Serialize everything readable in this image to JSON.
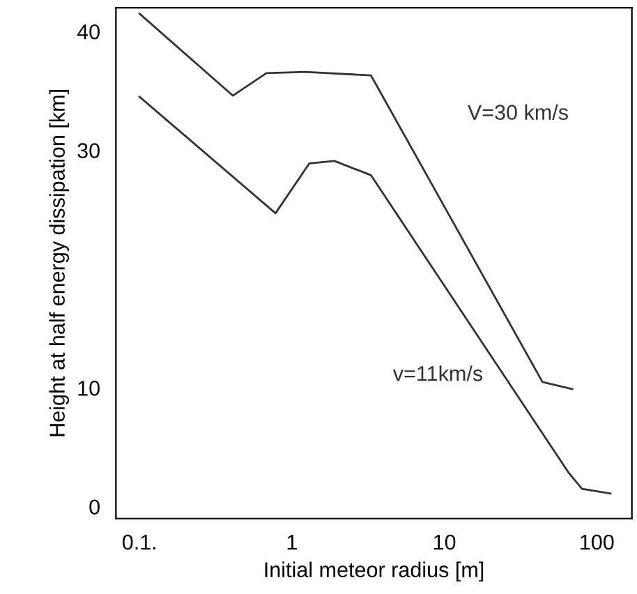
{
  "chart_data": {
    "type": "line",
    "xlabel": "Initial meteor radius [m]",
    "ylabel": "Height at half energy dissipation [km]",
    "log": "x",
    "xlim": [
      0.07,
      170
    ],
    "ylim": [
      -1,
      42
    ],
    "xticks": [
      {
        "value": 0.1,
        "label": "0.1."
      },
      1,
      10,
      100
    ],
    "yticks": [
      0,
      10,
      30,
      40
    ],
    "grid": false,
    "legend": false,
    "marker": "none",
    "line_style": "solid",
    "series": [
      {
        "name": "V=30 km/s",
        "color": "#333333",
        "x": [
          0.1,
          0.41,
          0.68,
          1.22,
          3.3,
          44,
          69
        ],
        "values": [
          41.5,
          34.6,
          36.5,
          36.6,
          36.3,
          10.5,
          9.9
        ]
      },
      {
        "name": "v=11km/s",
        "color": "#333333",
        "x": [
          0.1,
          0.78,
          1.3,
          1.9,
          3.3,
          65,
          80,
          123
        ],
        "values": [
          34.5,
          24.7,
          28.9,
          29.1,
          27.9,
          2.9,
          1.5,
          1.1
        ]
      }
    ]
  }
}
